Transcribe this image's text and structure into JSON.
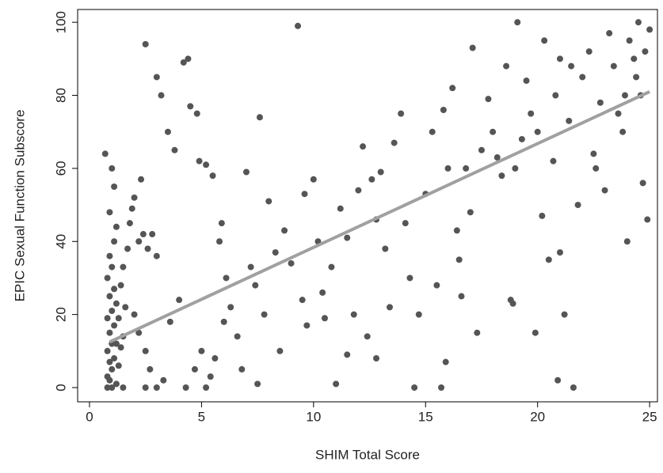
{
  "chart_data": {
    "type": "scatter",
    "x_label": "SHIM Total Score",
    "y_label": "EPIC Sexual Function Subscore",
    "xlim": [
      -0.53,
      25.35
    ],
    "ylim": [
      -3.9,
      103.5
    ],
    "xticks": [
      0,
      5,
      10,
      15,
      20,
      25
    ],
    "yticks": [
      0,
      20,
      40,
      60,
      80,
      100
    ],
    "series": [
      {
        "color": "#555555",
        "x": [
          0.8,
          0.9,
          1.0,
          1.1,
          0.8,
          1.0,
          0.9,
          1.1,
          0.8,
          1.0,
          1.2,
          0.9,
          1.1,
          0.8,
          1.0,
          0.9,
          1.1,
          0.7,
          1.0,
          1.1,
          0.9,
          1.2,
          0.8,
          1.2,
          1.3,
          1.4,
          1.5,
          1.3,
          1.6,
          1.4,
          1.5,
          1.7,
          1.8,
          1.9,
          2.0,
          2.2,
          2.4,
          2.6,
          2.8,
          3.0,
          2.3,
          2.5,
          3.0,
          3.2,
          3.5,
          3.8,
          4.2,
          4.4,
          4.5,
          4.8,
          4.9,
          5.2,
          5.5,
          2.0,
          2.2,
          2.5,
          2.7,
          3.0,
          3.3,
          3.6,
          4.0,
          4.3,
          4.7,
          5.0,
          5.2,
          5.4,
          5.6,
          5.8,
          5.9,
          6.1,
          6.3,
          6.6,
          6.8,
          7.0,
          7.2,
          7.4,
          7.6,
          7.8,
          7.5,
          8.0,
          8.3,
          8.7,
          9.0,
          9.3,
          9.6,
          9.7,
          10.0,
          10.2,
          10.4,
          10.5,
          10.8,
          11.0,
          11.2,
          11.5,
          11.8,
          12.0,
          12.2,
          12.4,
          12.6,
          12.8,
          13.0,
          13.2,
          13.4,
          13.6,
          13.9,
          14.1,
          14.3,
          14.5,
          14.7,
          15.0,
          15.3,
          15.5,
          15.7,
          15.8,
          15.9,
          16.0,
          16.2,
          16.4,
          16.6,
          16.8,
          17.0,
          17.1,
          17.3,
          17.5,
          17.8,
          18.0,
          18.2,
          18.4,
          18.6,
          18.8,
          19.0,
          19.1,
          19.3,
          19.5,
          19.7,
          19.9,
          20.0,
          20.2,
          20.3,
          20.5,
          20.7,
          20.9,
          21.0,
          21.2,
          21.4,
          21.6,
          21.8,
          22.0,
          22.3,
          22.6,
          22.8,
          23.0,
          23.2,
          23.4,
          23.6,
          23.8,
          24.0,
          24.1,
          24.3,
          24.5,
          24.6,
          24.7,
          24.9,
          25.0,
          24.8,
          24.4,
          23.9,
          1.0,
          1.2,
          0.9,
          1.5,
          2.5,
          6.0,
          8.5,
          9.5,
          11.5,
          12.8,
          16.5,
          18.9,
          21.0,
          21.5,
          22.5,
          20.8
        ],
        "y": [
          0,
          2,
          5,
          8,
          10,
          12,
          15,
          17,
          19,
          21,
          23,
          25,
          27,
          30,
          33,
          36,
          40,
          64,
          60,
          55,
          48,
          44,
          3,
          1,
          6,
          11,
          14,
          19,
          22,
          28,
          33,
          38,
          45,
          49,
          52,
          40,
          42,
          38,
          42,
          36,
          57,
          94,
          85,
          80,
          70,
          65,
          89,
          90,
          77,
          75,
          62,
          61,
          58,
          20,
          15,
          10,
          5,
          0,
          2,
          18,
          24,
          0,
          5,
          10,
          0,
          3,
          8,
          40,
          45,
          30,
          22,
          14,
          5,
          59,
          33,
          28,
          74,
          20,
          1,
          51,
          37,
          43,
          34,
          99,
          53,
          17,
          57,
          40,
          26,
          19,
          33,
          1,
          49,
          41,
          20,
          54,
          66,
          14,
          57,
          46,
          59,
          38,
          22,
          67,
          75,
          45,
          30,
          0,
          20,
          53,
          70,
          28,
          0,
          76,
          7,
          60,
          82,
          43,
          25,
          60,
          48,
          93,
          15,
          65,
          79,
          70,
          63,
          58,
          88,
          24,
          60,
          100,
          68,
          84,
          75,
          15,
          70,
          47,
          95,
          35,
          62,
          2,
          90,
          20,
          73,
          0,
          50,
          85,
          92,
          60,
          78,
          54,
          97,
          88,
          75,
          70,
          40,
          95,
          90,
          100,
          80,
          56,
          46,
          98,
          92,
          85,
          80,
          0,
          12,
          7,
          0,
          0,
          18,
          10,
          24,
          9,
          8,
          35,
          23,
          37,
          88,
          64,
          80
        ]
      }
    ],
    "fit_line": {
      "color": "#a0a0a0",
      "x": [
        0.9,
        25
      ],
      "y": [
        12.5,
        81
      ]
    }
  }
}
